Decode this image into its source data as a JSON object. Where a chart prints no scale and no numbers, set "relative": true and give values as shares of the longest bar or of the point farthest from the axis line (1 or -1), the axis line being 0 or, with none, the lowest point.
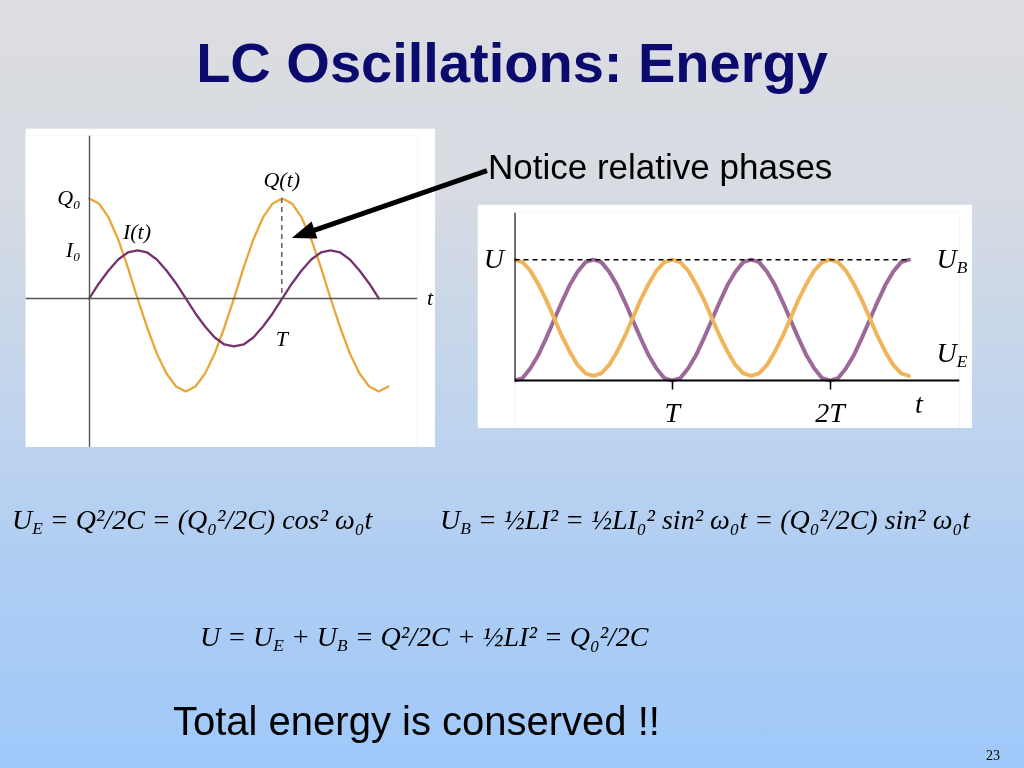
{
  "chart_data": [
    {
      "type": "other",
      "title": "LC Oscillations: Energy"
    },
    {
      "type": "line",
      "relative": true,
      "xlabel": "t",
      "categories": [
        null,
        null,
        null,
        null,
        null,
        null,
        null,
        null,
        null,
        null,
        null,
        null,
        null,
        null,
        null,
        null,
        null,
        null,
        null,
        null,
        null,
        null,
        null,
        null,
        null,
        null,
        null,
        null,
        null,
        null,
        null,
        null
      ],
      "series": [
        {
          "name": "Q(t)",
          "color": "#e9a73b",
          "values": [
            1,
            0.95,
            0.81,
            0.59,
            0.31,
            0,
            -0.29,
            -0.55,
            -0.75,
            -0.88,
            -0.93,
            -0.88,
            -0.75,
            -0.55,
            -0.29,
            0,
            0.31,
            0.59,
            0.81,
            0.95,
            1,
            0.95,
            0.81,
            0.59,
            0.31,
            0,
            -0.29,
            -0.55,
            -0.75,
            -0.88,
            -0.93,
            -0.88
          ]
        },
        {
          "name": "I(t)",
          "color": "#76326f",
          "values": [
            0,
            0.15,
            0.28,
            0.39,
            0.46,
            0.48,
            0.46,
            0.39,
            0.28,
            0.15,
            0,
            -0.15,
            -0.28,
            -0.39,
            -0.46,
            -0.48,
            -0.46,
            -0.39,
            -0.28,
            -0.15,
            0,
            0.15,
            0.28,
            0.39,
            0.46,
            0.48,
            0.46,
            0.39,
            0.28,
            0.15,
            0,
            null
          ]
        }
      ],
      "annotations": [
        "Q₀",
        "I₀",
        {
          "text": "T",
          "y": 0
        }
      ]
    },
    {
      "type": "line",
      "relative": true,
      "xlabel": "t",
      "categories": [
        null,
        null,
        null,
        null,
        null,
        null,
        null,
        null,
        null,
        null,
        null,
        null,
        null,
        null,
        null,
        null,
        null,
        null,
        null,
        null,
        "T",
        null,
        null,
        null,
        null,
        null,
        null,
        null,
        null,
        null,
        null,
        null,
        null,
        null,
        null,
        null,
        null,
        null,
        null,
        null,
        "2T",
        null,
        null,
        null,
        null,
        null,
        null,
        null,
        null,
        null,
        null
      ],
      "series": [
        {
          "name": "U$_{B}$",
          "color": "#9b6a99",
          "values": [
            0,
            0.02,
            0.1,
            0.21,
            0.35,
            0.5,
            0.65,
            0.79,
            0.9,
            0.98,
            1,
            0.98,
            0.9,
            0.79,
            0.65,
            0.5,
            0.35,
            0.21,
            0.1,
            0.02,
            0,
            0.02,
            0.1,
            0.21,
            0.35,
            0.5,
            0.65,
            0.79,
            0.9,
            0.98,
            1,
            0.98,
            0.9,
            0.79,
            0.65,
            0.5,
            0.35,
            0.21,
            0.1,
            0.02,
            0,
            0.02,
            0.1,
            0.21,
            0.35,
            0.5,
            0.65,
            0.79,
            0.9,
            0.98,
            1
          ]
        },
        {
          "name": "U$_{E}$",
          "color": "#f0b45a",
          "values": [
            1,
            0.98,
            0.91,
            0.8,
            0.67,
            0.52,
            0.37,
            0.24,
            0.13,
            0.06,
            0.04,
            0.06,
            0.13,
            0.24,
            0.37,
            0.52,
            0.67,
            0.8,
            0.91,
            0.98,
            1,
            0.98,
            0.91,
            0.8,
            0.67,
            0.52,
            0.37,
            0.24,
            0.13,
            0.06,
            0.04,
            0.06,
            0.13,
            0.24,
            0.37,
            0.52,
            0.67,
            0.8,
            0.91,
            0.98,
            1,
            0.98,
            0.91,
            0.8,
            0.67,
            0.52,
            0.37,
            0.24,
            0.13,
            0.06,
            0.04
          ]
        }
      ],
      "ref_lines": [
        {
          "axis": "y",
          "value": 1,
          "label": "U",
          "color": "#000000",
          "line_style": "dashed"
        }
      ],
      "annotations": [
        "Notice relative phases"
      ]
    },
    {
      "type": "other",
      "annotations": [
        "U$_{E}$ = Q²/2C = (Q₀²/2C) cos² ω₀t",
        "U$_{B}$ = ½LI² = ½LI₀² sin² ω₀t = (Q₀²/2C) sin² ω₀t",
        "U = U$_{E}$ + U$_{B}$ = Q²/2C + ½LI² = Q₀²/2C",
        "Total energy is conserved !!",
        "23"
      ]
    }
  ]
}
